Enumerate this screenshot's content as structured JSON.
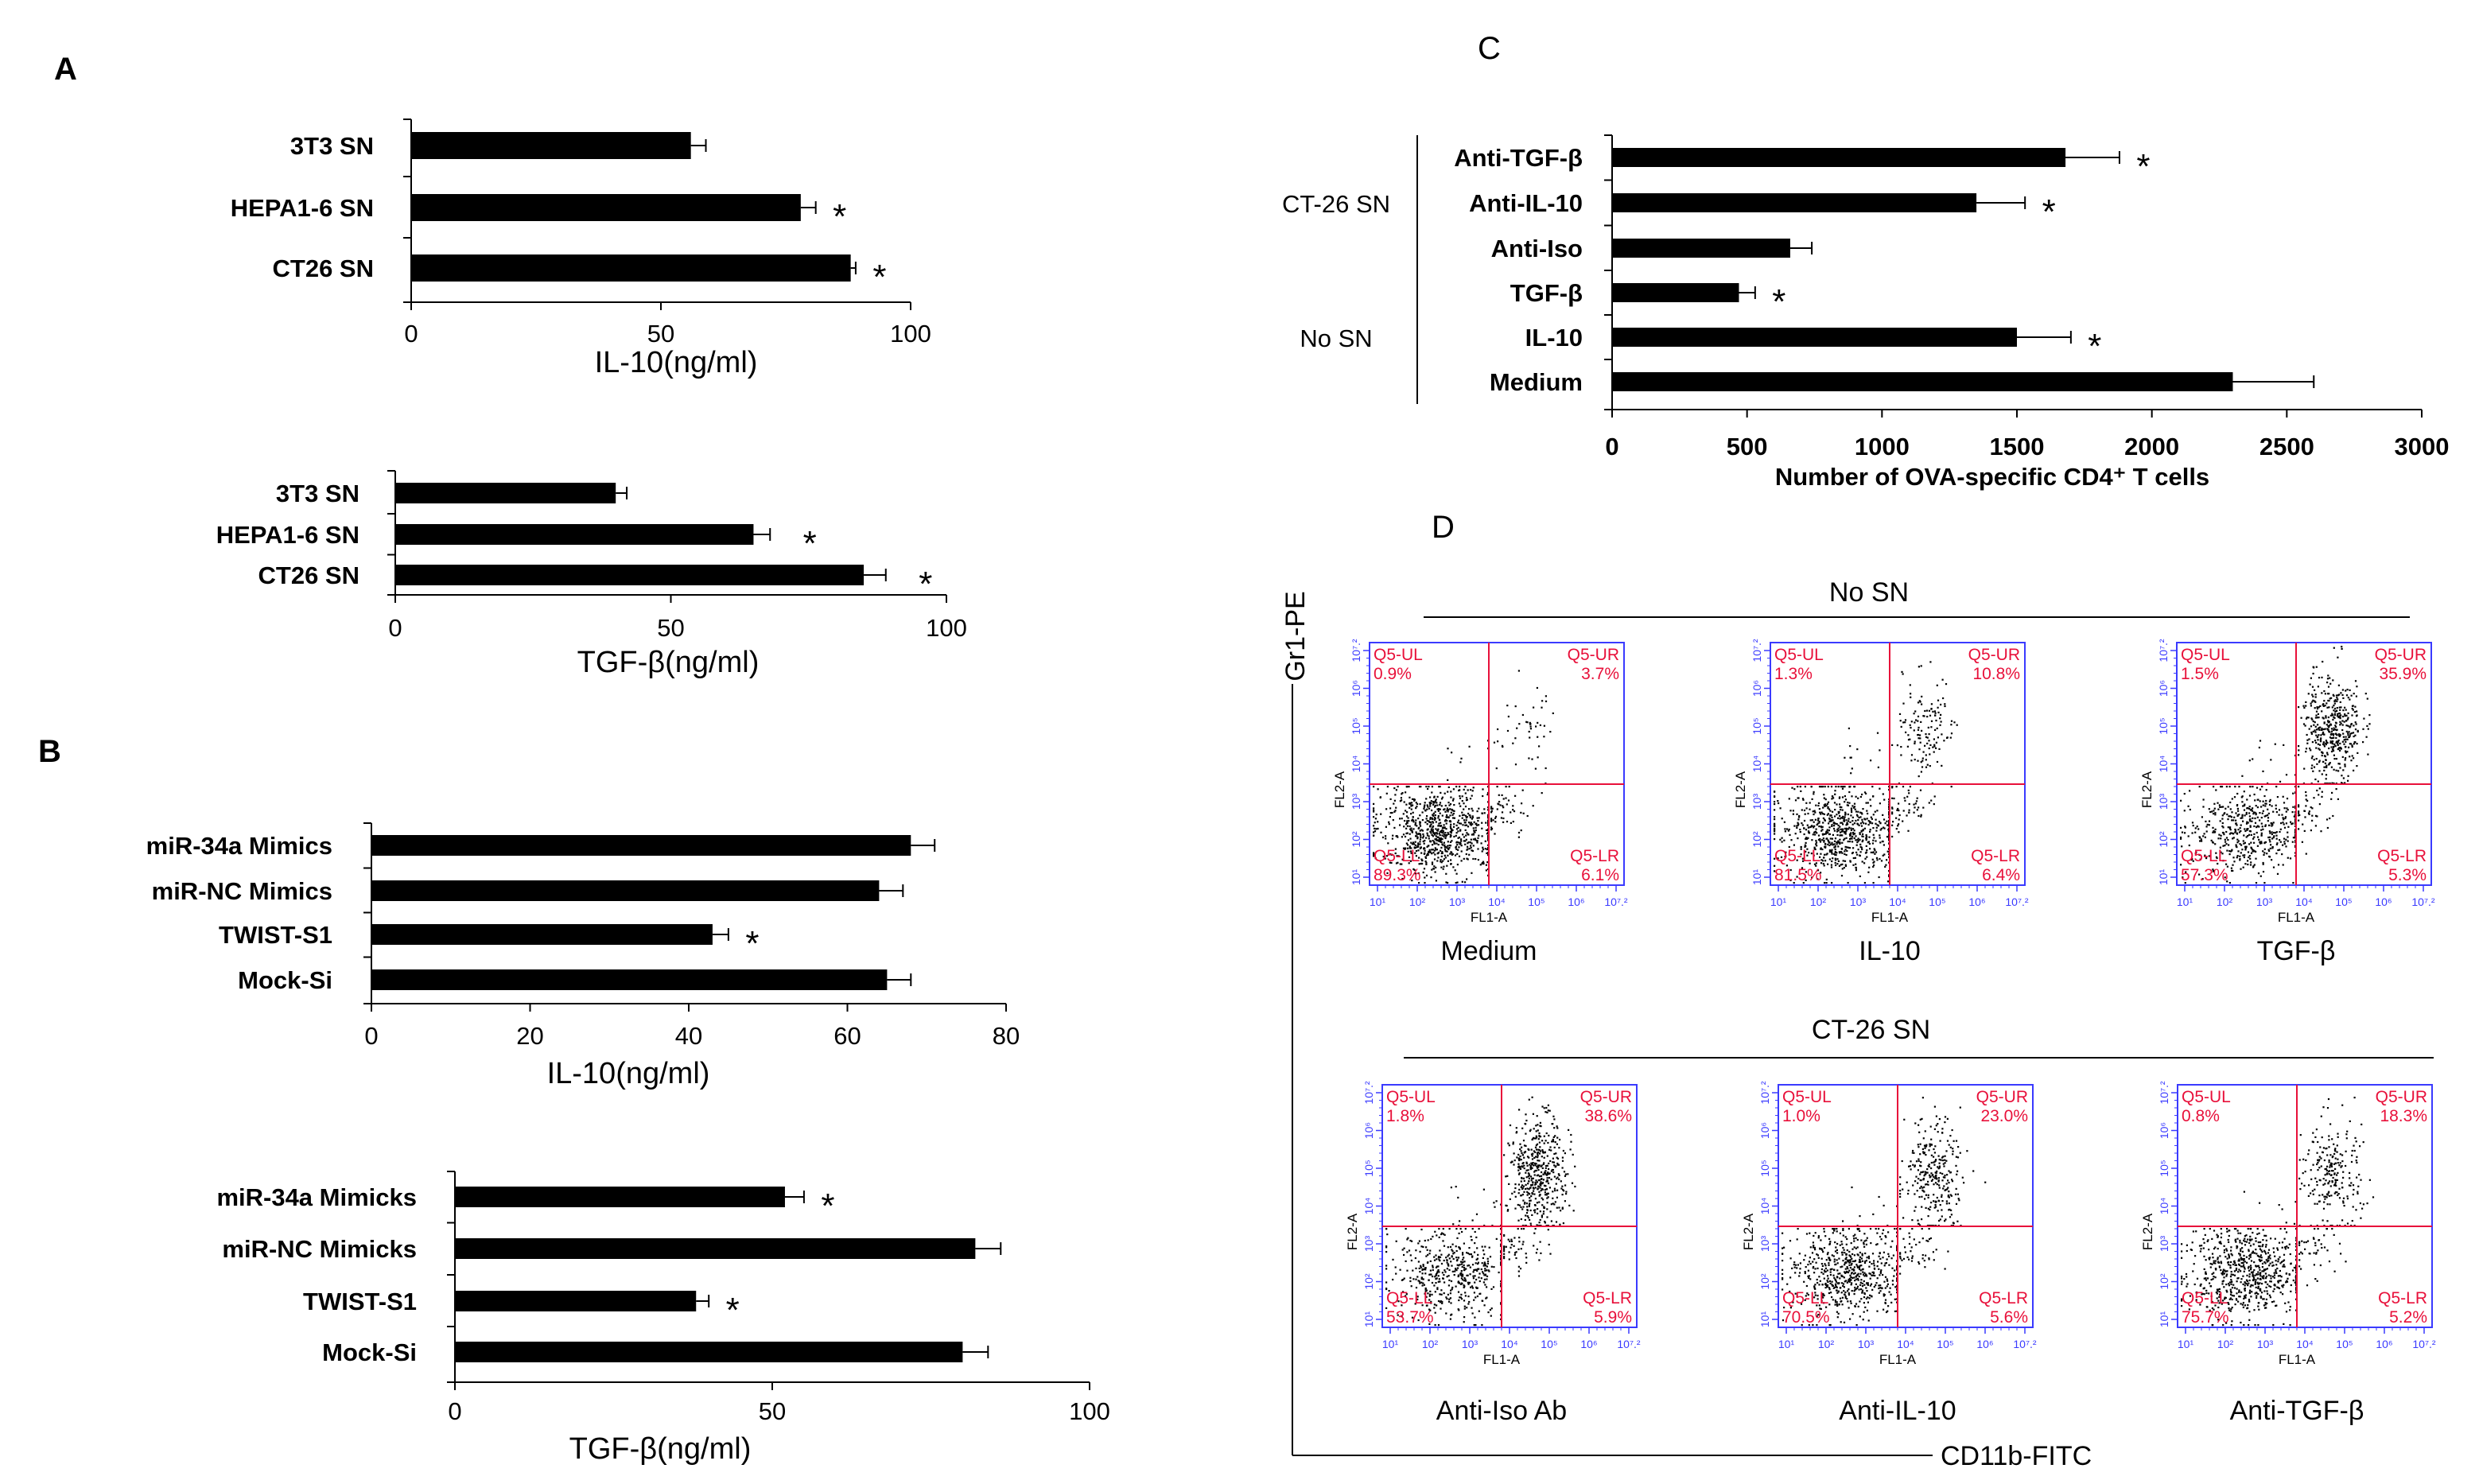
{
  "panels": {
    "A": "A",
    "B": "B",
    "C": "C",
    "D": "D"
  },
  "chart_data": [
    {
      "id": "A1",
      "type": "bar",
      "orientation": "horizontal",
      "categories": [
        "3T3 SN",
        "HEPA1-6 SN",
        "CT26 SN"
      ],
      "series": [
        {
          "values": [
            56,
            78,
            88
          ],
          "errors": [
            3,
            3,
            1
          ]
        }
      ],
      "significant": [
        false,
        true,
        true
      ],
      "xlabel": "IL-10(ng/ml)",
      "xlim": [
        0,
        100
      ],
      "ticks": [
        0,
        50,
        100
      ]
    },
    {
      "id": "A2",
      "type": "bar",
      "orientation": "horizontal",
      "categories": [
        "3T3 SN",
        "HEPA1-6 SN",
        "CT26 SN"
      ],
      "series": [
        {
          "values": [
            40,
            65,
            85
          ],
          "errors": [
            2,
            3,
            4
          ]
        }
      ],
      "significant": [
        false,
        true,
        true
      ],
      "xlabel": "TGF-β(ng/ml)",
      "xlim": [
        0,
        100
      ],
      "ticks": [
        0,
        50,
        100
      ]
    },
    {
      "id": "B1",
      "type": "bar",
      "orientation": "horizontal",
      "categories": [
        "miR-34a Mimics",
        "miR-NC Mimics",
        "TWIST-S1",
        "Mock-Si"
      ],
      "series": [
        {
          "values": [
            68,
            64,
            43,
            65
          ],
          "errors": [
            3,
            3,
            2,
            3
          ]
        }
      ],
      "significant": [
        false,
        false,
        true,
        false
      ],
      "xlabel": "IL-10(ng/ml)",
      "xlim": [
        0,
        80
      ],
      "ticks": [
        0,
        20,
        40,
        60,
        80
      ]
    },
    {
      "id": "B2",
      "type": "bar",
      "orientation": "horizontal",
      "categories": [
        "miR-34a Mimicks",
        "miR-NC Mimicks",
        "TWIST-S1",
        "Mock-Si"
      ],
      "series": [
        {
          "values": [
            52,
            82,
            38,
            80
          ],
          "errors": [
            3,
            4,
            2,
            4
          ]
        }
      ],
      "significant": [
        true,
        false,
        true,
        false
      ],
      "xlabel": "TGF-β(ng/ml)",
      "xlim": [
        0,
        100
      ],
      "ticks": [
        0,
        50,
        100
      ]
    },
    {
      "id": "C",
      "type": "bar",
      "orientation": "horizontal",
      "categories": [
        "Anti-TGF-β",
        "Anti-IL-10",
        "Anti-Iso",
        "TGF-β",
        "IL-10",
        "Medium"
      ],
      "groups": [
        {
          "label": "CT-26  SN",
          "members": [
            "Anti-TGF-β",
            "Anti-IL-10",
            "Anti-Iso"
          ]
        },
        {
          "label": "No  SN",
          "members": [
            "TGF-β",
            "IL-10",
            "Medium"
          ]
        }
      ],
      "series": [
        {
          "values": [
            1680,
            1350,
            660,
            470,
            1500,
            2300
          ],
          "errors": [
            200,
            180,
            80,
            60,
            200,
            300
          ]
        }
      ],
      "significant": [
        true,
        true,
        false,
        true,
        true,
        false
      ],
      "xlabel": "Number  of OVA-specific CD4⁺ T cells",
      "xlim": [
        0,
        3000
      ],
      "ticks": [
        0,
        500,
        1000,
        1500,
        2000,
        2500,
        3000
      ]
    },
    {
      "id": "D",
      "type": "scatter",
      "ylabel": "Gr1-PE",
      "xlabel": "CD11b-FITC",
      "subplot_xlabel": "FL1-A",
      "subplot_ylabel": "FL2-A",
      "ticks": [
        "10¹",
        "10²",
        "10³",
        "10⁴",
        "10⁵",
        "10⁶",
        "10⁷.²"
      ],
      "rows": [
        {
          "header": "No  SN",
          "plots": [
            {
              "label": "Medium",
              "UL": "0.9%",
              "UR": "3.7%",
              "LL": "89.3%",
              "LR": "6.1%"
            },
            {
              "label": "IL-10",
              "UL": "1.3%",
              "UR": "10.8%",
              "LL": "81.5%",
              "LR": "6.4%"
            },
            {
              "label": "TGF-β",
              "UL": "1.5%",
              "UR": "35.9%",
              "LL": "57.3%",
              "LR": "5.3%"
            }
          ]
        },
        {
          "header": "CT-26  SN",
          "plots": [
            {
              "label": "Anti-Iso Ab",
              "UL": "1.8%",
              "UR": "38.6%",
              "LL": "53.7%",
              "LR": "5.9%"
            },
            {
              "label": "Anti-IL-10",
              "UL": "1.0%",
              "UR": "23.0%",
              "LL": "70.5%",
              "LR": "5.6%"
            },
            {
              "label": "Anti-TGF-β",
              "UL": "0.8%",
              "UR": "18.3%",
              "LL": "75.7%",
              "LR": "5.2%"
            }
          ]
        }
      ],
      "quadrant_names": {
        "UL": "Q5-UL",
        "UR": "Q5-UR",
        "LL": "Q5-LL",
        "LR": "Q5-LR"
      },
      "colors": {
        "frame": "#3a3aff",
        "gate": "#e8103a",
        "dots": "#000000"
      }
    }
  ]
}
